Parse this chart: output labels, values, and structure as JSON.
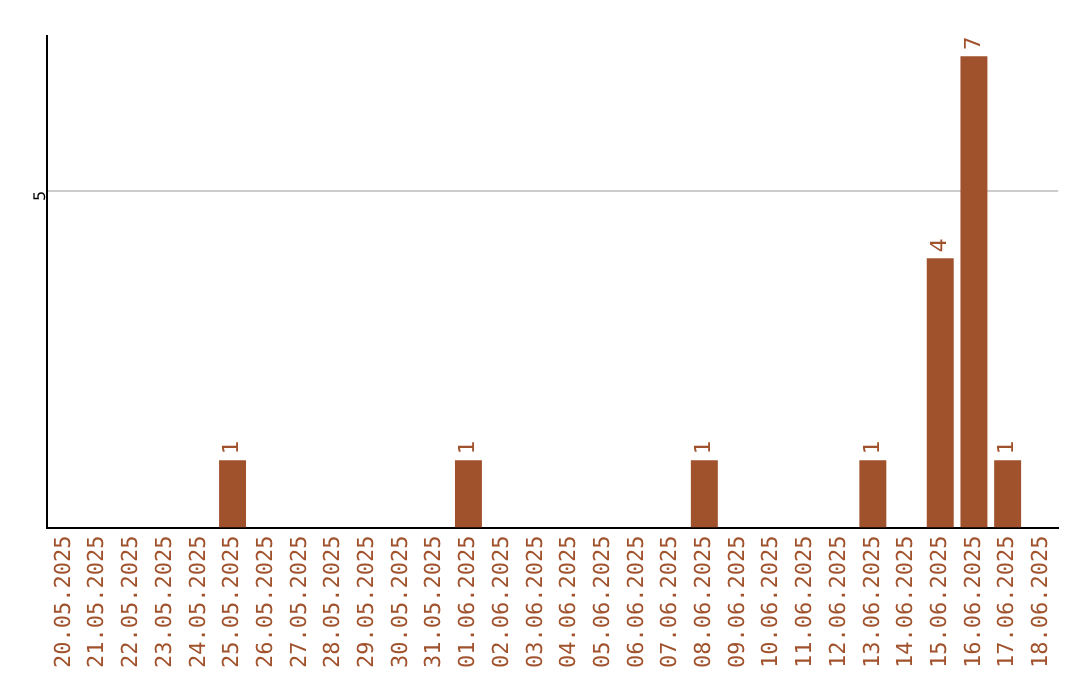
{
  "chart_data": {
    "type": "bar",
    "categories": [
      "20.05.2025",
      "21.05.2025",
      "22.05.2025",
      "23.05.2025",
      "24.05.2025",
      "25.05.2025",
      "26.05.2025",
      "27.05.2025",
      "28.05.2025",
      "29.05.2025",
      "30.05.2025",
      "31.05.2025",
      "01.06.2025",
      "02.06.2025",
      "03.06.2025",
      "04.06.2025",
      "05.06.2025",
      "06.06.2025",
      "07.06.2025",
      "08.06.2025",
      "09.06.2025",
      "10.06.2025",
      "11.06.2025",
      "12.06.2025",
      "13.06.2025",
      "14.06.2025",
      "15.06.2025",
      "16.06.2025",
      "17.06.2025",
      "18.06.2025"
    ],
    "values": [
      0,
      0,
      0,
      0,
      0,
      1,
      0,
      0,
      0,
      0,
      0,
      0,
      1,
      0,
      0,
      0,
      0,
      0,
      0,
      1,
      0,
      0,
      0,
      0,
      1,
      0,
      4,
      7,
      1,
      0
    ],
    "value_labels": [
      null,
      null,
      null,
      null,
      null,
      "1",
      null,
      null,
      null,
      null,
      null,
      null,
      "1",
      null,
      null,
      null,
      null,
      null,
      null,
      "1",
      null,
      null,
      null,
      null,
      "1",
      null,
      "4",
      "7",
      "1",
      null
    ],
    "color": "#a0522d",
    "ylim": [
      0,
      7.3
    ],
    "yticks": [
      5
    ],
    "grid": "y",
    "legend": false
  }
}
